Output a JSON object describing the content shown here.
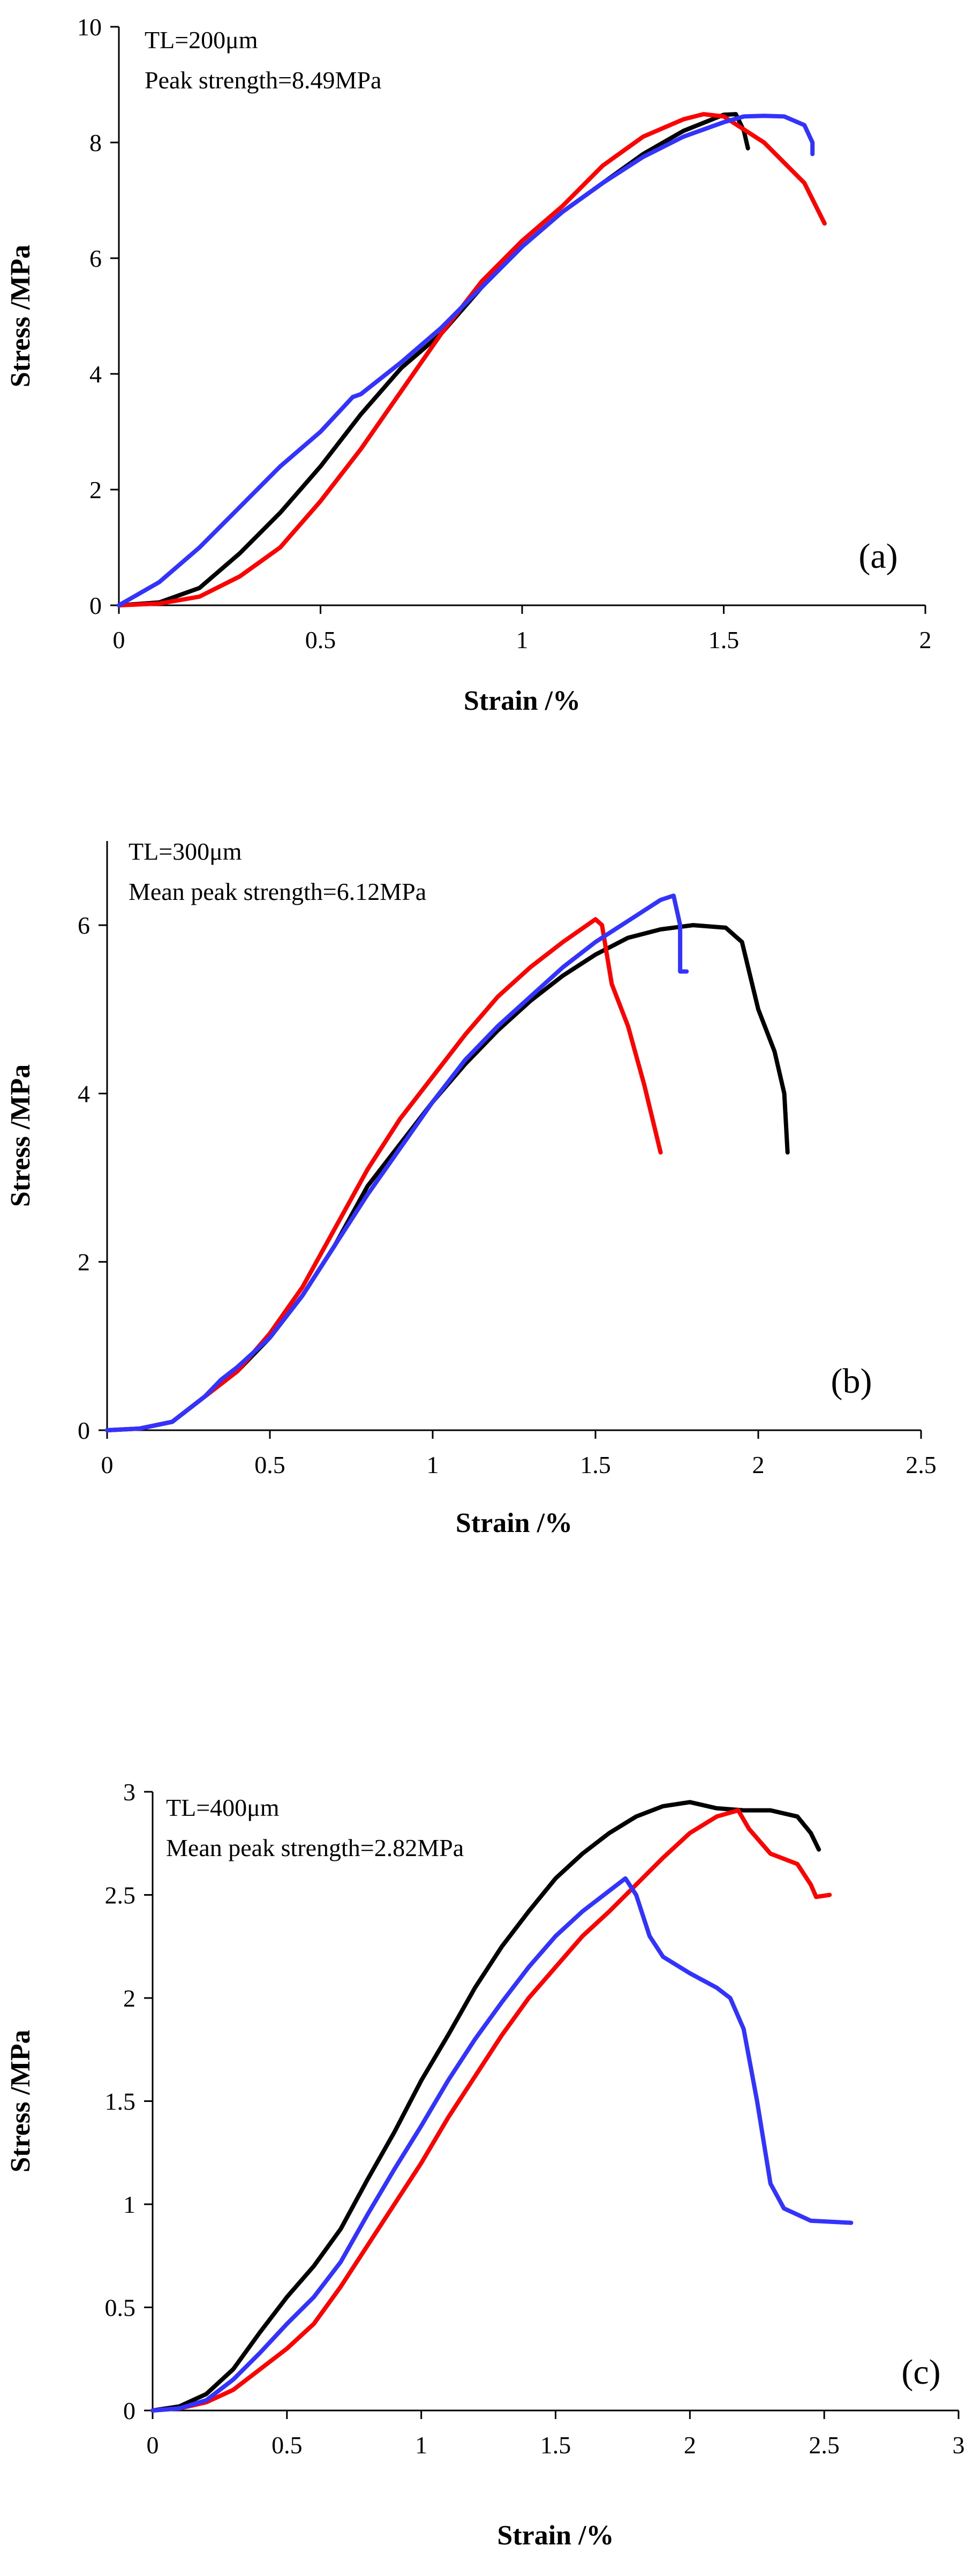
{
  "chart_data": [
    {
      "type": "line",
      "panel_label": "(a)",
      "annotation_lines": [
        "TL=200μm",
        "Peak strength=8.49MPa"
      ],
      "xlabel": "Strain /%",
      "ylabel": "Stress /MPa",
      "xlim": [
        0,
        2
      ],
      "ylim": [
        0,
        10
      ],
      "xticks": [
        0,
        0.5,
        1,
        1.5,
        2
      ],
      "yticks": [
        0,
        2,
        4,
        6,
        8,
        10
      ],
      "xtick_labels": [
        "0",
        "0.5",
        "1",
        "1.5",
        "2"
      ],
      "ytick_labels": [
        "0",
        "2",
        "4",
        "6",
        "8",
        "10"
      ],
      "grid": false,
      "series": [
        {
          "color": "#000000",
          "points": [
            [
              0,
              0
            ],
            [
              0.1,
              0.05
            ],
            [
              0.2,
              0.3
            ],
            [
              0.3,
              0.9
            ],
            [
              0.4,
              1.6
            ],
            [
              0.5,
              2.4
            ],
            [
              0.6,
              3.3
            ],
            [
              0.7,
              4.1
            ],
            [
              0.75,
              4.4
            ],
            [
              0.8,
              4.7
            ],
            [
              0.9,
              5.5
            ],
            [
              1.0,
              6.2
            ],
            [
              1.1,
              6.8
            ],
            [
              1.2,
              7.3
            ],
            [
              1.3,
              7.8
            ],
            [
              1.4,
              8.2
            ],
            [
              1.5,
              8.48
            ],
            [
              1.53,
              8.49
            ],
            [
              1.55,
              8.2
            ],
            [
              1.56,
              7.9
            ]
          ]
        },
        {
          "color": "#ff0000",
          "points": [
            [
              0,
              0
            ],
            [
              0.1,
              0.03
            ],
            [
              0.2,
              0.15
            ],
            [
              0.3,
              0.5
            ],
            [
              0.4,
              1.0
            ],
            [
              0.5,
              1.8
            ],
            [
              0.6,
              2.7
            ],
            [
              0.7,
              3.7
            ],
            [
              0.8,
              4.7
            ],
            [
              0.9,
              5.6
            ],
            [
              1.0,
              6.3
            ],
            [
              1.1,
              6.9
            ],
            [
              1.2,
              7.6
            ],
            [
              1.3,
              8.1
            ],
            [
              1.4,
              8.4
            ],
            [
              1.45,
              8.49
            ],
            [
              1.5,
              8.45
            ],
            [
              1.6,
              8.0
            ],
            [
              1.7,
              7.3
            ],
            [
              1.75,
              6.6
            ]
          ]
        },
        {
          "color": "#3333ff",
          "points": [
            [
              0,
              0
            ],
            [
              0.1,
              0.4
            ],
            [
              0.2,
              1.0
            ],
            [
              0.3,
              1.7
            ],
            [
              0.4,
              2.4
            ],
            [
              0.5,
              3.0
            ],
            [
              0.58,
              3.6
            ],
            [
              0.6,
              3.65
            ],
            [
              0.7,
              4.2
            ],
            [
              0.8,
              4.8
            ],
            [
              0.9,
              5.5
            ],
            [
              1.0,
              6.2
            ],
            [
              1.1,
              6.8
            ],
            [
              1.2,
              7.3
            ],
            [
              1.3,
              7.75
            ],
            [
              1.4,
              8.1
            ],
            [
              1.5,
              8.35
            ],
            [
              1.55,
              8.45
            ],
            [
              1.6,
              8.46
            ],
            [
              1.65,
              8.45
            ],
            [
              1.7,
              8.3
            ],
            [
              1.72,
              8.0
            ],
            [
              1.72,
              7.8
            ]
          ]
        }
      ]
    },
    {
      "type": "line",
      "panel_label": "(b)",
      "annotation_lines": [
        "TL=300μm",
        "Mean peak strength=6.12MPa"
      ],
      "xlabel": "Strain /%",
      "ylabel": "Stress /MPa",
      "xlim": [
        0,
        2.5
      ],
      "ylim": [
        0,
        7
      ],
      "xticks": [
        0,
        0.5,
        1,
        1.5,
        2,
        2.5
      ],
      "yticks": [
        0,
        2,
        4,
        6
      ],
      "xtick_labels": [
        "0",
        "0.5",
        "1",
        "1.5",
        "2",
        "2.5"
      ],
      "ytick_labels": [
        "0",
        "2",
        "4",
        "6"
      ],
      "grid": false,
      "series": [
        {
          "color": "#000000",
          "points": [
            [
              0,
              0
            ],
            [
              0.1,
              0.02
            ],
            [
              0.2,
              0.1
            ],
            [
              0.3,
              0.4
            ],
            [
              0.4,
              0.7
            ],
            [
              0.5,
              1.1
            ],
            [
              0.6,
              1.6
            ],
            [
              0.7,
              2.2
            ],
            [
              0.8,
              2.9
            ],
            [
              0.9,
              3.4
            ],
            [
              1.0,
              3.9
            ],
            [
              1.1,
              4.35
            ],
            [
              1.2,
              4.75
            ],
            [
              1.3,
              5.1
            ],
            [
              1.4,
              5.4
            ],
            [
              1.5,
              5.65
            ],
            [
              1.6,
              5.85
            ],
            [
              1.7,
              5.95
            ],
            [
              1.8,
              6.0
            ],
            [
              1.9,
              5.97
            ],
            [
              1.95,
              5.8
            ],
            [
              2.0,
              5.0
            ],
            [
              2.05,
              4.5
            ],
            [
              2.08,
              4.0
            ],
            [
              2.09,
              3.3
            ]
          ]
        },
        {
          "color": "#ff0000",
          "points": [
            [
              0,
              0
            ],
            [
              0.1,
              0.02
            ],
            [
              0.2,
              0.1
            ],
            [
              0.3,
              0.4
            ],
            [
              0.4,
              0.7
            ],
            [
              0.5,
              1.15
            ],
            [
              0.6,
              1.7
            ],
            [
              0.7,
              2.4
            ],
            [
              0.8,
              3.1
            ],
            [
              0.9,
              3.7
            ],
            [
              1.0,
              4.2
            ],
            [
              1.1,
              4.7
            ],
            [
              1.2,
              5.15
            ],
            [
              1.3,
              5.5
            ],
            [
              1.4,
              5.8
            ],
            [
              1.5,
              6.07
            ],
            [
              1.52,
              6.0
            ],
            [
              1.55,
              5.3
            ],
            [
              1.6,
              4.8
            ],
            [
              1.65,
              4.1
            ],
            [
              1.7,
              3.3
            ]
          ]
        },
        {
          "color": "#3333ff",
          "points": [
            [
              0,
              0
            ],
            [
              0.1,
              0.02
            ],
            [
              0.2,
              0.1
            ],
            [
              0.3,
              0.4
            ],
            [
              0.35,
              0.6
            ],
            [
              0.4,
              0.75
            ],
            [
              0.5,
              1.1
            ],
            [
              0.6,
              1.6
            ],
            [
              0.7,
              2.2
            ],
            [
              0.8,
              2.8
            ],
            [
              0.9,
              3.35
            ],
            [
              1.0,
              3.9
            ],
            [
              1.1,
              4.4
            ],
            [
              1.2,
              4.8
            ],
            [
              1.3,
              5.15
            ],
            [
              1.4,
              5.5
            ],
            [
              1.5,
              5.8
            ],
            [
              1.6,
              6.05
            ],
            [
              1.7,
              6.3
            ],
            [
              1.74,
              6.35
            ],
            [
              1.76,
              6.0
            ],
            [
              1.76,
              5.45
            ],
            [
              1.78,
              5.45
            ]
          ]
        }
      ]
    },
    {
      "type": "line",
      "panel_label": "(c)",
      "annotation_lines": [
        "TL=400μm",
        "Mean peak strength=2.82MPa"
      ],
      "xlabel": "Strain /%",
      "ylabel": "Stress /MPa",
      "xlim": [
        0,
        3
      ],
      "ylim": [
        0,
        3
      ],
      "xticks": [
        0,
        0.5,
        1,
        1.5,
        2,
        2.5,
        3
      ],
      "yticks": [
        0,
        0.5,
        1,
        1.5,
        2,
        2.5,
        3
      ],
      "xtick_labels": [
        "0",
        "0.5",
        "1",
        "1.5",
        "2",
        "2.5",
        "3"
      ],
      "ytick_labels": [
        "0",
        "0.5",
        "1",
        "1.5",
        "2",
        "2.5",
        "3"
      ],
      "grid": false,
      "series": [
        {
          "color": "#000000",
          "points": [
            [
              0,
              0
            ],
            [
              0.1,
              0.02
            ],
            [
              0.2,
              0.08
            ],
            [
              0.3,
              0.2
            ],
            [
              0.4,
              0.38
            ],
            [
              0.5,
              0.55
            ],
            [
              0.6,
              0.7
            ],
            [
              0.7,
              0.88
            ],
            [
              0.8,
              1.12
            ],
            [
              0.9,
              1.35
            ],
            [
              1.0,
              1.6
            ],
            [
              1.1,
              1.82
            ],
            [
              1.2,
              2.05
            ],
            [
              1.3,
              2.25
            ],
            [
              1.4,
              2.42
            ],
            [
              1.5,
              2.58
            ],
            [
              1.6,
              2.7
            ],
            [
              1.7,
              2.8
            ],
            [
              1.8,
              2.88
            ],
            [
              1.9,
              2.93
            ],
            [
              2.0,
              2.95
            ],
            [
              2.1,
              2.92
            ],
            [
              2.2,
              2.91
            ],
            [
              2.3,
              2.91
            ],
            [
              2.4,
              2.88
            ],
            [
              2.45,
              2.8
            ],
            [
              2.48,
              2.72
            ]
          ]
        },
        {
          "color": "#ff0000",
          "points": [
            [
              0,
              0
            ],
            [
              0.1,
              0.01
            ],
            [
              0.2,
              0.04
            ],
            [
              0.3,
              0.1
            ],
            [
              0.4,
              0.2
            ],
            [
              0.5,
              0.3
            ],
            [
              0.6,
              0.42
            ],
            [
              0.7,
              0.6
            ],
            [
              0.8,
              0.8
            ],
            [
              0.9,
              1.0
            ],
            [
              1.0,
              1.2
            ],
            [
              1.1,
              1.42
            ],
            [
              1.2,
              1.62
            ],
            [
              1.3,
              1.82
            ],
            [
              1.4,
              2.0
            ],
            [
              1.5,
              2.15
            ],
            [
              1.6,
              2.3
            ],
            [
              1.7,
              2.42
            ],
            [
              1.8,
              2.55
            ],
            [
              1.9,
              2.68
            ],
            [
              2.0,
              2.8
            ],
            [
              2.1,
              2.88
            ],
            [
              2.18,
              2.91
            ],
            [
              2.22,
              2.82
            ],
            [
              2.3,
              2.7
            ],
            [
              2.4,
              2.65
            ],
            [
              2.45,
              2.55
            ],
            [
              2.47,
              2.49
            ],
            [
              2.52,
              2.5
            ]
          ]
        },
        {
          "color": "#3333ff",
          "points": [
            [
              0,
              0
            ],
            [
              0.1,
              0.01
            ],
            [
              0.2,
              0.05
            ],
            [
              0.3,
              0.15
            ],
            [
              0.4,
              0.28
            ],
            [
              0.5,
              0.42
            ],
            [
              0.6,
              0.55
            ],
            [
              0.7,
              0.72
            ],
            [
              0.8,
              0.95
            ],
            [
              0.9,
              1.17
            ],
            [
              1.0,
              1.38
            ],
            [
              1.1,
              1.6
            ],
            [
              1.2,
              1.8
            ],
            [
              1.3,
              1.98
            ],
            [
              1.4,
              2.15
            ],
            [
              1.5,
              2.3
            ],
            [
              1.6,
              2.42
            ],
            [
              1.7,
              2.52
            ],
            [
              1.76,
              2.58
            ],
            [
              1.8,
              2.5
            ],
            [
              1.85,
              2.3
            ],
            [
              1.9,
              2.2
            ],
            [
              2.0,
              2.12
            ],
            [
              2.1,
              2.05
            ],
            [
              2.15,
              2.0
            ],
            [
              2.2,
              1.85
            ],
            [
              2.25,
              1.5
            ],
            [
              2.3,
              1.1
            ],
            [
              2.35,
              0.98
            ],
            [
              2.45,
              0.92
            ],
            [
              2.6,
              0.91
            ]
          ]
        }
      ]
    }
  ]
}
